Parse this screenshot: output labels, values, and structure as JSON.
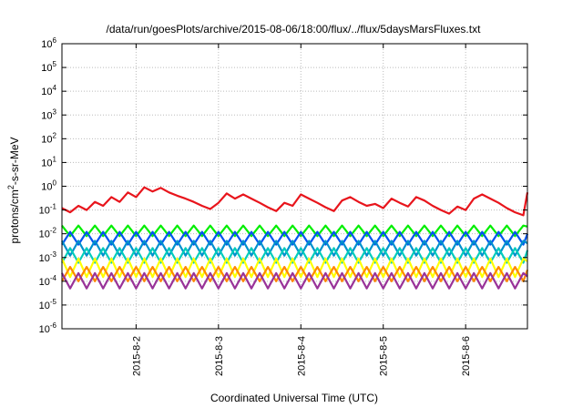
{
  "chart_data": {
    "type": "line",
    "title": "/data/run/goesPlots/archive/2015-08-06/18:00/flux/../flux/5daysMarsFluxes.txt",
    "xlabel": "Coordinated Universal Time (UTC)",
    "ylabel": {
      "pre": "protons/cm",
      "sup": "2",
      "post": "-s-sr-MeV"
    },
    "y_scale": "log",
    "ylim": [
      1e-06,
      1000000.0
    ],
    "xlim": [
      "2015-08-01 02:24",
      "2015-08-06 18:00"
    ],
    "grid": true,
    "legend": "none",
    "y_ticks": [
      {
        "base": "10",
        "exp": "-6"
      },
      {
        "base": "10",
        "exp": "-5"
      },
      {
        "base": "10",
        "exp": "-4"
      },
      {
        "base": "10",
        "exp": "-3"
      },
      {
        "base": "10",
        "exp": "-2"
      },
      {
        "base": "10",
        "exp": "-1"
      },
      {
        "base": "10",
        "exp": "0"
      },
      {
        "base": "10",
        "exp": "1"
      },
      {
        "base": "10",
        "exp": "2"
      },
      {
        "base": "10",
        "exp": "3"
      },
      {
        "base": "10",
        "exp": "4"
      },
      {
        "base": "10",
        "exp": "5"
      },
      {
        "base": "10",
        "exp": "6"
      }
    ],
    "x_ticks": [
      {
        "label": "2015-8-2",
        "date": "2015-08-02 00:00"
      },
      {
        "label": "2015-8-3",
        "date": "2015-08-03 00:00"
      },
      {
        "label": "2015-8-4",
        "date": "2015-08-04 00:00"
      },
      {
        "label": "2015-8-5",
        "date": "2015-08-05 00:00"
      },
      {
        "label": "2015-8-6",
        "date": "2015-08-06 00:00"
      }
    ],
    "series": [
      {
        "color": "#e8151c",
        "dates": [
          "2015-08-01 02:24",
          "2015-08-01 04:48",
          "2015-08-01 07:12",
          "2015-08-01 09:36",
          "2015-08-01 12:00",
          "2015-08-01 14:24",
          "2015-08-01 16:48",
          "2015-08-01 19:12",
          "2015-08-01 21:36",
          "2015-08-02 00:00",
          "2015-08-02 02:24",
          "2015-08-02 04:48",
          "2015-08-02 07:12",
          "2015-08-02 09:36",
          "2015-08-02 12:00",
          "2015-08-02 14:24",
          "2015-08-02 16:48",
          "2015-08-02 19:12",
          "2015-08-02 21:36",
          "2015-08-03 00:00",
          "2015-08-03 02:24",
          "2015-08-03 04:48",
          "2015-08-03 07:12",
          "2015-08-03 09:36",
          "2015-08-03 12:00",
          "2015-08-03 14:24",
          "2015-08-03 16:48",
          "2015-08-03 19:12",
          "2015-08-03 21:36",
          "2015-08-04 00:00",
          "2015-08-04 02:24",
          "2015-08-04 04:48",
          "2015-08-04 07:12",
          "2015-08-04 09:36",
          "2015-08-04 12:00",
          "2015-08-04 14:24",
          "2015-08-04 16:48",
          "2015-08-04 19:12",
          "2015-08-04 21:36",
          "2015-08-05 00:00",
          "2015-08-05 02:24",
          "2015-08-05 04:48",
          "2015-08-05 07:12",
          "2015-08-05 09:36",
          "2015-08-05 12:00",
          "2015-08-05 14:24",
          "2015-08-05 16:48",
          "2015-08-05 19:12",
          "2015-08-05 21:36",
          "2015-08-06 00:00",
          "2015-08-06 02:24",
          "2015-08-06 04:48",
          "2015-08-06 07:12",
          "2015-08-06 09:36",
          "2015-08-06 12:00",
          "2015-08-06 14:24",
          "2015-08-06 16:48",
          "2015-08-06 18:00"
        ],
        "values": [
          0.12,
          0.08,
          0.15,
          0.1,
          0.22,
          0.15,
          0.35,
          0.22,
          0.55,
          0.35,
          0.9,
          0.6,
          0.85,
          0.55,
          0.4,
          0.3,
          0.22,
          0.15,
          0.11,
          0.2,
          0.5,
          0.3,
          0.45,
          0.3,
          0.2,
          0.13,
          0.09,
          0.2,
          0.15,
          0.45,
          0.3,
          0.2,
          0.13,
          0.09,
          0.25,
          0.35,
          0.22,
          0.15,
          0.18,
          0.12,
          0.3,
          0.2,
          0.14,
          0.35,
          0.25,
          0.15,
          0.1,
          0.07,
          0.14,
          0.1,
          0.3,
          0.45,
          0.3,
          0.2,
          0.12,
          0.08,
          0.06,
          0.55
        ]
      },
      {
        "color": "#00ee00",
        "base": 0.008,
        "peak": 0.022,
        "final": 0.02
      },
      {
        "color": "#0055ee",
        "base": 0.0035,
        "peak": 0.012,
        "final": 0.01
      },
      {
        "color": "#0090cc",
        "base": 0.0012,
        "peak": 0.005,
        "final": 0.004
      },
      {
        "color": "#00ccbb",
        "base": 0.0006,
        "peak": 0.0025,
        "final": 0.002
      },
      {
        "color": "#ffff00",
        "base": 0.00015,
        "peak": 0.0009,
        "final": 0.0007
      },
      {
        "color": "#ff8800",
        "base": 0.0001,
        "peak": 0.0004,
        "final": 0.0003
      },
      {
        "color": "#993399",
        "base": 5e-05,
        "peak": 0.00022,
        "final": 0.00016
      }
    ]
  }
}
